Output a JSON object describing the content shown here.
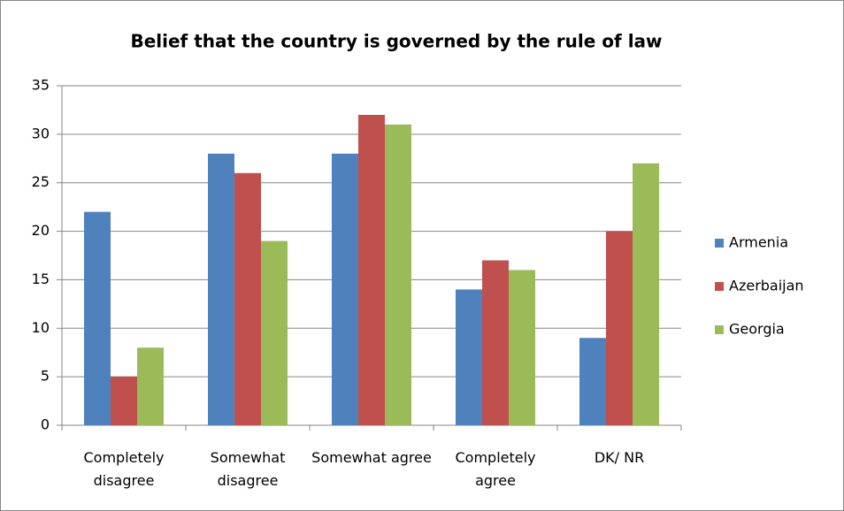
{
  "chart_data": {
    "type": "bar",
    "title": "Belief that the country is governed by the rule of law",
    "categories": [
      "Completely disagree",
      "Somewhat disagree",
      "Somewhat agree",
      "Completely agree",
      "DK/ NR"
    ],
    "series": [
      {
        "name": "Armenia",
        "color": "#4f81bd",
        "values": [
          22,
          28,
          28,
          14,
          9
        ]
      },
      {
        "name": "Azerbaijan",
        "color": "#c0504d",
        "values": [
          5,
          26,
          32,
          17,
          20
        ]
      },
      {
        "name": "Georgia",
        "color": "#9bbb59",
        "values": [
          8,
          19,
          31,
          16,
          27
        ]
      }
    ],
    "ylim": [
      0,
      35
    ],
    "yticks": [
      0,
      5,
      10,
      15,
      20,
      25,
      30,
      35
    ],
    "grid": true,
    "legend": "right"
  }
}
